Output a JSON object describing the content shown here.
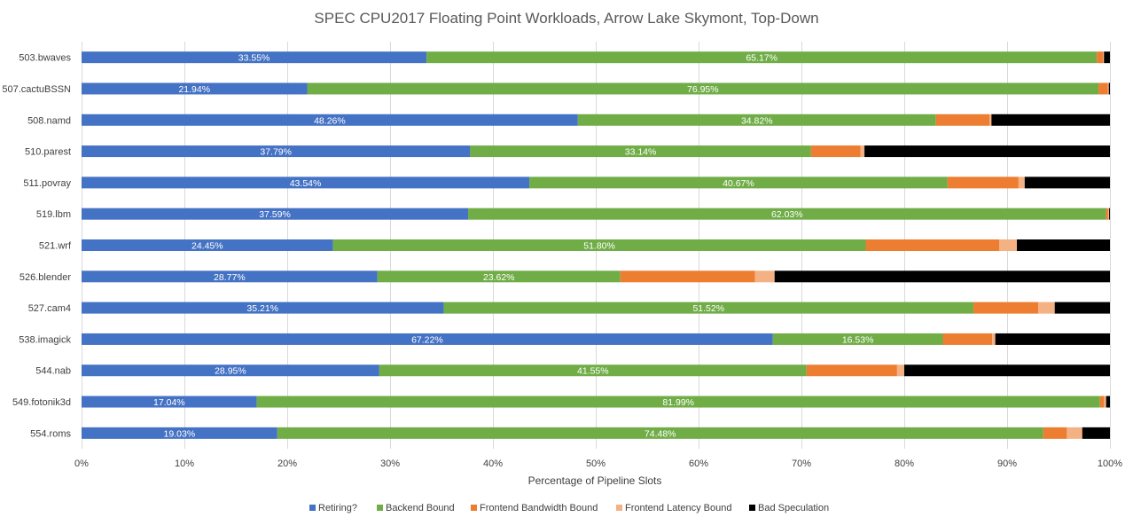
{
  "chart_data": {
    "type": "bar",
    "orientation": "horizontal",
    "stacked": true,
    "percent_stacked": true,
    "title": "SPEC CPU2017 Floating Point Workloads, Arrow Lake Skymont, Top-Down",
    "xlabel": "Percentage of Pipeline Slots",
    "ylabel": "",
    "xlim": [
      0,
      100
    ],
    "x_ticks": [
      "0%",
      "10%",
      "20%",
      "30%",
      "40%",
      "50%",
      "60%",
      "70%",
      "80%",
      "90%",
      "100%"
    ],
    "grid": true,
    "legend_position": "bottom",
    "categories": [
      "503.bwaves",
      "507.cactuBSSN",
      "508.namd",
      "510.parest",
      "511.povray",
      "519.lbm",
      "521.wrf",
      "526.blender",
      "527.cam4",
      "538.imagick",
      "544.nab",
      "549.fotonik3d",
      "554.roms"
    ],
    "series": [
      {
        "name": "Retiring?",
        "color": "#4472c4",
        "values": [
          33.55,
          21.94,
          48.26,
          37.79,
          43.54,
          37.59,
          24.45,
          28.77,
          35.21,
          67.22,
          28.95,
          17.04,
          19.03
        ],
        "labels": [
          "33.55%",
          "21.94%",
          "48.26%",
          "37.79%",
          "43.54%",
          "37.59%",
          "24.45%",
          "28.77%",
          "35.21%",
          "67.22%",
          "28.95%",
          "17.04%",
          "19.03%"
        ]
      },
      {
        "name": "Backend Bound",
        "color": "#70ad47",
        "values": [
          65.17,
          76.95,
          34.82,
          33.14,
          40.67,
          62.03,
          51.8,
          23.62,
          51.52,
          16.53,
          41.55,
          81.99,
          74.48
        ],
        "labels": [
          "65.17%",
          "76.95%",
          "34.82%",
          "33.14%",
          "40.67%",
          "62.03%",
          "51.80%",
          "23.62%",
          "51.52%",
          "16.53%",
          "41.55%",
          "81.99%",
          "74.48%"
        ]
      },
      {
        "name": "Frontend Bandwidth Bound",
        "color": "#ed7d31",
        "values": [
          0.6,
          0.9,
          5.2,
          4.8,
          6.9,
          0.2,
          13.0,
          13.1,
          6.3,
          4.8,
          8.8,
          0.4,
          2.3
        ]
      },
      {
        "name": "Frontend Latency Bound",
        "color": "#f4b183",
        "values": [
          0.1,
          0.1,
          0.2,
          0.4,
          0.6,
          0.1,
          1.7,
          1.9,
          1.6,
          0.3,
          0.7,
          0.2,
          1.5
        ]
      },
      {
        "name": "Bad Speculation",
        "color": "#000000",
        "values": [
          0.58,
          0.11,
          11.52,
          23.87,
          8.29,
          0.08,
          9.05,
          32.61,
          5.37,
          11.15,
          20.0,
          0.37,
          2.69
        ]
      }
    ]
  }
}
